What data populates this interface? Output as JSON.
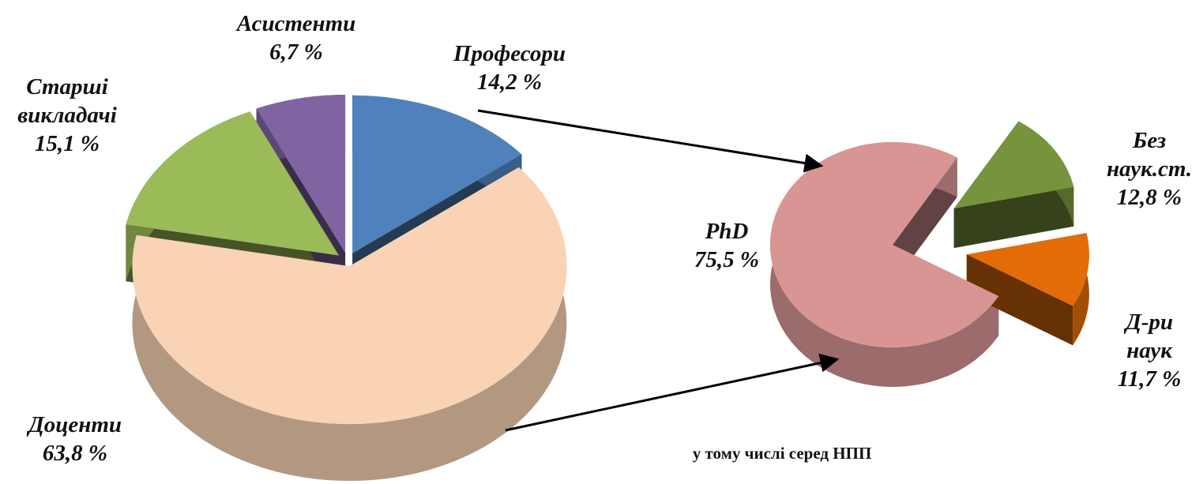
{
  "chart_data": [
    {
      "type": "pie",
      "categories": [
        "Професори",
        "Доценти",
        "Старші викладачі",
        "Асистенти"
      ],
      "values": [
        14.2,
        63.8,
        15.1,
        6.7
      ],
      "value_labels": [
        "14,2 %",
        "63,8 %",
        "15,1 %",
        "6,7 %"
      ],
      "colors": [
        "#4f81bd",
        "#f9d3b3",
        "#9bbb59",
        "#8064a2"
      ]
    },
    {
      "type": "pie",
      "title": "у тому числі серед НПП",
      "categories": [
        "PhD",
        "Без наук.ст.",
        "Д-ри наук"
      ],
      "values": [
        75.5,
        12.8,
        11.7
      ],
      "value_labels": [
        "75,5 %",
        "12,8 %",
        "11,7 %"
      ],
      "colors": [
        "#d99594",
        "#77933c",
        "#e36c09"
      ]
    }
  ]
}
